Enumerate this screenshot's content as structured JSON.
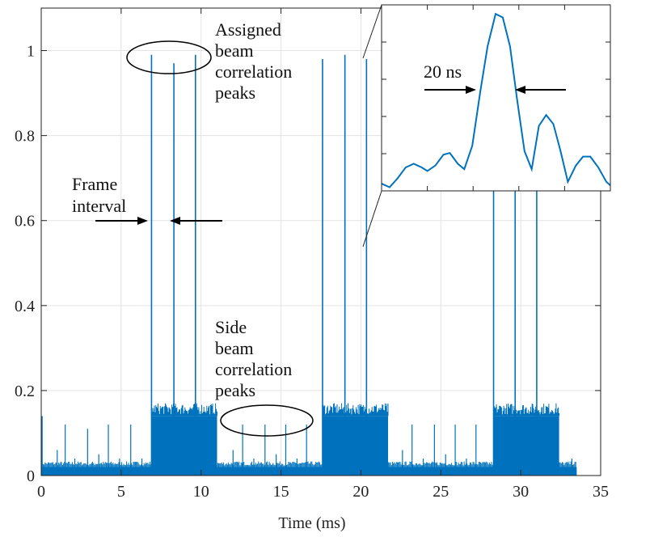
{
  "chart_data": [
    {
      "type": "line",
      "xlabel": "Time (ms)",
      "ylabel": "",
      "xlim": [
        0,
        35
      ],
      "ylim": [
        0,
        1.1
      ],
      "xticks": [
        0,
        5,
        10,
        15,
        20,
        25,
        30,
        35
      ],
      "yticks": [
        0,
        0.2,
        0.4,
        0.6,
        0.8,
        1
      ],
      "ytick_labels": [
        "0",
        "0.2",
        "0.4",
        "0.6",
        "0.8",
        "1"
      ],
      "grid": true,
      "series_color": "#0072BD",
      "baseline_level": 0.02,
      "noise_start": [
        0,
        0.14
      ],
      "data_end": 33.5,
      "dense_blocks": [
        {
          "x0": 6.9,
          "x1": 11.0,
          "level": 0.14
        },
        {
          "x0": 17.6,
          "x1": 21.7,
          "level": 0.14
        },
        {
          "x0": 28.3,
          "x1": 32.4,
          "level": 0.14
        }
      ],
      "main_peaks": [
        {
          "x": 6.9,
          "y": 0.99
        },
        {
          "x": 8.3,
          "y": 0.97
        },
        {
          "x": 9.65,
          "y": 0.99
        },
        {
          "x": 17.6,
          "y": 0.98
        },
        {
          "x": 19.0,
          "y": 0.99
        },
        {
          "x": 20.35,
          "y": 0.98
        },
        {
          "x": 28.3,
          "y": 0.99
        },
        {
          "x": 29.65,
          "y": 0.97
        },
        {
          "x": 31.0,
          "y": 0.98
        }
      ],
      "side_peaks": [
        {
          "x": 1.0,
          "y": 0.06
        },
        {
          "x": 1.5,
          "y": 0.12
        },
        {
          "x": 2.1,
          "y": 0.04
        },
        {
          "x": 2.9,
          "y": 0.11
        },
        {
          "x": 3.6,
          "y": 0.05
        },
        {
          "x": 4.2,
          "y": 0.12
        },
        {
          "x": 4.9,
          "y": 0.04
        },
        {
          "x": 5.6,
          "y": 0.12
        },
        {
          "x": 6.3,
          "y": 0.04
        },
        {
          "x": 12.0,
          "y": 0.06
        },
        {
          "x": 12.6,
          "y": 0.12
        },
        {
          "x": 13.3,
          "y": 0.04
        },
        {
          "x": 14.0,
          "y": 0.12
        },
        {
          "x": 14.7,
          "y": 0.05
        },
        {
          "x": 15.3,
          "y": 0.12
        },
        {
          "x": 16.0,
          "y": 0.04
        },
        {
          "x": 16.6,
          "y": 0.12
        },
        {
          "x": 22.6,
          "y": 0.06
        },
        {
          "x": 23.2,
          "y": 0.12
        },
        {
          "x": 23.9,
          "y": 0.04
        },
        {
          "x": 24.6,
          "y": 0.12
        },
        {
          "x": 25.3,
          "y": 0.05
        },
        {
          "x": 25.9,
          "y": 0.12
        },
        {
          "x": 26.6,
          "y": 0.04
        },
        {
          "x": 27.2,
          "y": 0.12
        },
        {
          "x": 33.2,
          "y": 0.04
        }
      ],
      "annotations": {
        "assigned": [
          "Assigned",
          "beam",
          "correlation",
          "peaks"
        ],
        "side": [
          "Side",
          "beam",
          "correlation",
          "peaks"
        ],
        "frame": [
          "Frame",
          "interval"
        ]
      }
    },
    {
      "type": "line",
      "inset": true,
      "series_color": "#0072BD",
      "x": [
        0,
        1,
        2,
        3,
        4,
        5,
        6,
        7,
        8,
        9,
        10,
        11,
        12,
        13,
        14,
        15,
        16,
        17,
        18,
        19,
        20,
        21,
        22,
        23,
        24,
        25,
        26,
        27,
        28,
        29,
        30,
        31,
        32,
        33,
        34,
        35,
        36,
        37,
        38,
        39,
        40,
        41,
        42,
        43,
        44,
        45,
        46,
        47,
        48,
        49,
        50,
        51,
        52,
        53,
        54,
        55,
        56,
        57,
        58,
        59,
        60,
        61,
        62,
        63,
        64,
        65,
        66,
        67,
        68,
        69,
        70,
        71,
        72,
        73,
        74,
        75,
        76,
        77,
        78,
        79,
        80,
        81,
        82,
        83,
        84,
        85,
        86,
        87,
        88,
        89,
        90,
        91,
        92,
        93,
        94,
        95,
        96,
        97,
        98,
        99,
        100,
        101,
        102,
        103,
        104,
        105,
        106,
        107,
        108,
        109,
        110,
        111,
        112,
        113,
        114,
        115,
        116,
        117,
        118,
        119,
        120,
        121,
        122,
        123,
        124,
        125,
        126,
        127,
        128,
        129,
        130,
        131,
        132,
        133,
        134,
        135,
        136,
        137,
        138,
        139,
        140,
        141,
        142,
        143,
        144,
        145,
        146,
        147,
        148,
        149,
        150,
        151,
        152,
        153,
        154,
        155,
        156,
        157,
        158,
        159,
        160,
        161,
        162,
        163,
        164,
        165,
        166,
        167,
        168,
        169,
        170,
        171,
        172,
        173,
        174,
        175,
        176,
        177,
        178,
        179,
        180,
        181,
        182,
        183,
        184,
        185,
        186,
        187,
        188,
        189,
        190,
        191,
        192,
        193,
        194,
        195,
        196,
        197,
        198,
        199,
        200,
        201,
        202,
        203,
        204,
        205,
        206,
        207,
        208,
        209,
        210,
        211,
        212,
        213,
        214,
        215,
        216,
        217,
        218,
        219,
        220,
        221,
        222,
        223,
        224,
        225,
        226,
        227,
        228,
        229,
        230,
        231,
        232,
        233,
        234,
        235,
        236,
        237,
        238,
        239,
        240,
        241,
        242,
        243,
        244,
        245,
        246,
        247,
        248,
        249,
        250,
        251,
        252,
        253,
        254,
        255,
        256,
        257,
        258,
        259,
        260,
        261,
        262,
        263,
        264,
        265,
        266,
        267,
        268,
        269,
        270,
        271,
        272,
        273,
        274,
        275,
        276,
        277,
        278,
        279,
        280,
        281,
        282,
        283,
        284,
        285
      ],
      "y_points": [
        [
          0,
          0.04
        ],
        [
          10,
          0.02
        ],
        [
          20,
          0.07
        ],
        [
          30,
          0.13
        ],
        [
          40,
          0.15
        ],
        [
          50,
          0.13
        ],
        [
          57,
          0.11
        ],
        [
          67,
          0.14
        ],
        [
          77,
          0.2
        ],
        [
          85,
          0.21
        ],
        [
          95,
          0.15
        ],
        [
          103,
          0.12
        ],
        [
          113,
          0.25
        ],
        [
          123,
          0.55
        ],
        [
          132,
          0.8
        ],
        [
          142,
          0.98
        ],
        [
          151,
          0.96
        ],
        [
          160,
          0.8
        ],
        [
          169,
          0.5
        ],
        [
          178,
          0.22
        ],
        [
          187,
          0.12
        ],
        [
          196,
          0.36
        ],
        [
          205,
          0.42
        ],
        [
          214,
          0.37
        ],
        [
          223,
          0.22
        ],
        [
          232,
          0.05
        ],
        [
          242,
          0.14
        ],
        [
          251,
          0.19
        ],
        [
          260,
          0.19
        ],
        [
          270,
          0.13
        ],
        [
          280,
          0.05
        ],
        [
          285,
          0.03
        ]
      ],
      "xlim": [
        0,
        285
      ],
      "ylim": [
        0,
        1.03
      ],
      "annotation": "20 ns"
    }
  ]
}
